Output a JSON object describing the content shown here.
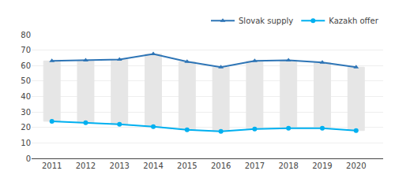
{
  "chart_data": {
    "type": "line",
    "x": [
      2011,
      2012,
      2013,
      2014,
      2015,
      2016,
      2017,
      2018,
      2019,
      2020
    ],
    "xlim": [
      2010.4,
      2020.8
    ],
    "xticks": [
      2011,
      2012,
      2013,
      2014,
      2015,
      2016,
      2017,
      2018,
      2019,
      2020
    ],
    "ylim": [
      0,
      80
    ],
    "yticks": [
      0,
      10,
      20,
      30,
      40,
      50,
      60,
      70,
      80
    ],
    "grid": true,
    "legend": "upper right",
    "bars": {
      "type": "bar",
      "color": "#E6E6E6",
      "high": [
        63.0,
        63.5,
        64.0,
        67.5,
        62.5,
        59.0,
        63.0,
        63.5,
        62.0,
        59.0
      ],
      "low": [
        24.0,
        23.0,
        22.0,
        20.5,
        18.5,
        17.5,
        19.0,
        19.5,
        19.5,
        18.0
      ]
    },
    "series": [
      {
        "name": "Slovak supply",
        "type": "line",
        "color": "#2E75B6",
        "marker": "triangle-up",
        "values": [
          63.0,
          63.5,
          64.0,
          67.5,
          62.5,
          59.0,
          63.0,
          63.5,
          62.0,
          59.0
        ]
      },
      {
        "name": "Kazakh offer",
        "type": "line",
        "color": "#00B0F0",
        "marker": "circle",
        "values": [
          24.0,
          23.0,
          22.0,
          20.5,
          18.5,
          17.5,
          19.0,
          19.5,
          19.5,
          18.0
        ]
      }
    ]
  }
}
